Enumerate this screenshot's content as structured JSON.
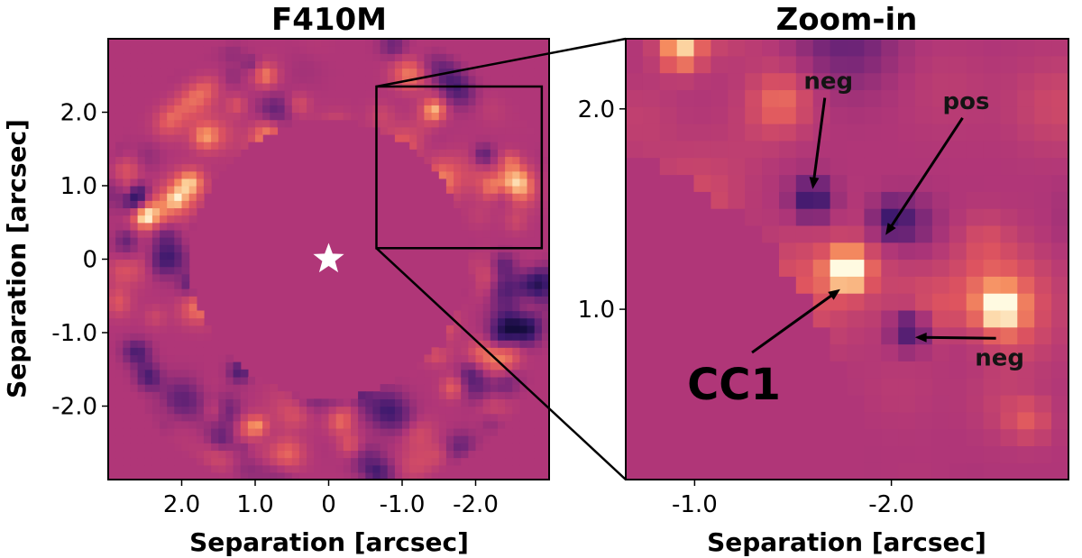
{
  "chart_data": [
    {
      "type": "heatmap",
      "title": "F410M",
      "xlabel": "Separation [arcsec]",
      "ylabel": "Separation [arcsec]",
      "xlim": [
        3.0,
        -3.0
      ],
      "ylim": [
        -3.0,
        3.0
      ],
      "xticks": [
        2.0,
        1.0,
        0.0,
        -1.0,
        -2.0
      ],
      "xtick_labels": [
        "2.0",
        "1.0",
        "0",
        "-1.0",
        "-2.0"
      ],
      "yticks": [
        2.0,
        1.0,
        0.0,
        -1.0,
        -2.0
      ],
      "ytick_labels": [
        "2.0",
        "1.0",
        "0",
        "-1.0",
        "-2.0"
      ],
      "colormap": "magma",
      "mask_inner_radius": 1.9,
      "mask_outer_radius": 2.9,
      "star_marker": {
        "x": 0.0,
        "y": 0.0,
        "color": "#ffffff",
        "symbol": "star"
      },
      "zoom_box": {
        "x": [
          -0.65,
          -2.9
        ],
        "y": [
          0.15,
          2.35
        ]
      }
    },
    {
      "type": "heatmap",
      "title": "Zoom-in",
      "xlabel": "Separation [arcsec]",
      "ylabel": "",
      "xlim": [
        -0.65,
        -2.9
      ],
      "ylim": [
        0.15,
        2.35
      ],
      "xticks": [
        -1.0,
        -2.0
      ],
      "xtick_labels": [
        "-1.0",
        "-2.0"
      ],
      "yticks": [
        2.0,
        1.0
      ],
      "ytick_labels": [
        "2.0",
        "1.0"
      ],
      "colormap": "magma",
      "annotations": [
        {
          "text": "neg",
          "arrow_to": {
            "x": -1.6,
            "y": 1.6
          },
          "text_at": {
            "x": -1.68,
            "y": 2.1
          }
        },
        {
          "text": "pos",
          "arrow_to": {
            "x": -1.97,
            "y": 1.37
          },
          "text_at": {
            "x": -2.38,
            "y": 2.0
          }
        },
        {
          "text": "CC1",
          "arrow_to": {
            "x": -1.74,
            "y": 1.1
          },
          "text_at": {
            "x": -1.2,
            "y": 0.55
          }
        },
        {
          "text": "neg",
          "arrow_to": {
            "x": -2.12,
            "y": 0.86
          },
          "text_at": {
            "x": -2.55,
            "y": 0.72
          }
        }
      ]
    }
  ]
}
